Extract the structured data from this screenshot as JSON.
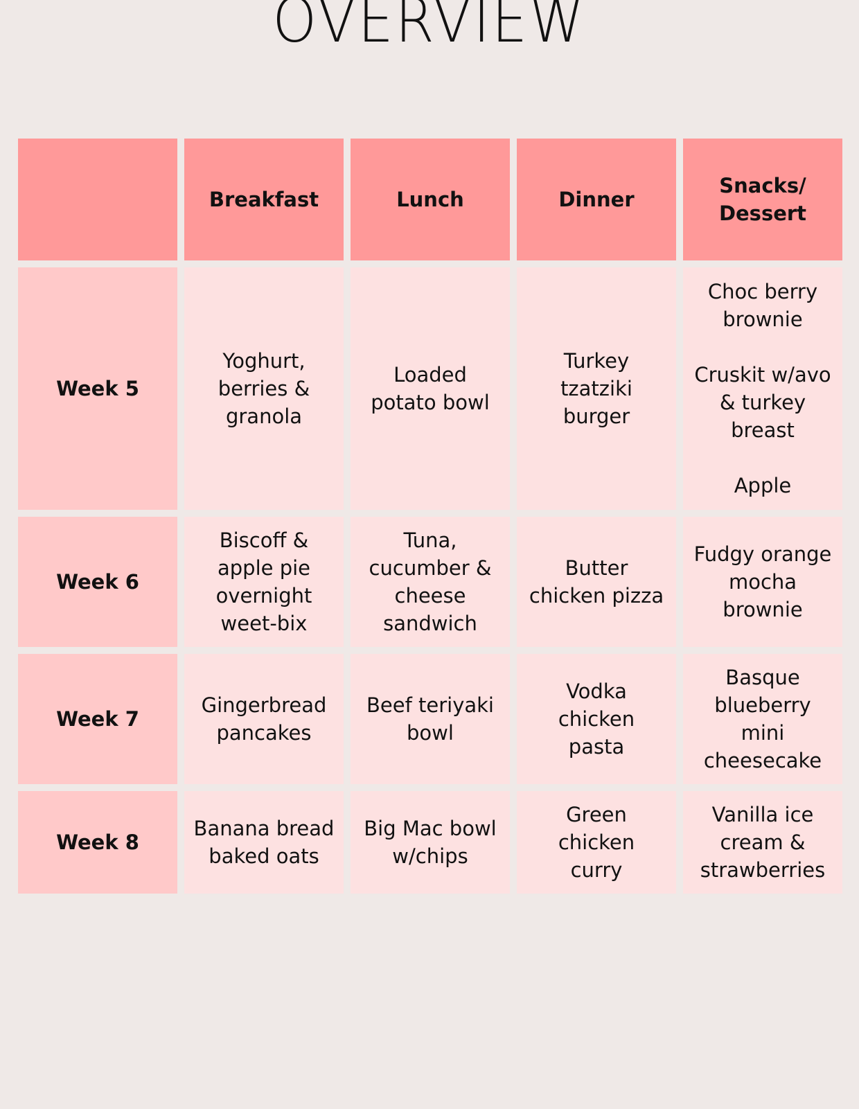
{
  "title": "OVERVIEW",
  "columns": [
    "",
    "Breakfast",
    "Lunch",
    "Dinner",
    "Snacks/\nDessert"
  ],
  "rows": [
    {
      "week": "Week 5",
      "breakfast": "Yoghurt,\nberries &\ngranola",
      "lunch": "Loaded\npotato bowl",
      "dinner": "Turkey tzatziki\nburger",
      "snacks": "Choc berry\nbrownie\n\nCruskit w/avo\n& turkey\nbreast\n\nApple"
    },
    {
      "week": "Week 6",
      "breakfast": "Biscoff &\napple pie\novernight\nweet-bix",
      "lunch": "Tuna,\ncucumber &\ncheese\nsandwich",
      "dinner": "Butter\nchicken pizza",
      "snacks": "Fudgy orange\nmocha\nbrownie"
    },
    {
      "week": "Week 7",
      "breakfast": "Gingerbread\npancakes",
      "lunch": "Beef teriyaki\nbowl",
      "dinner": "Vodka chicken\npasta",
      "snacks": "Basque\nblueberry\nmini\ncheesecake"
    },
    {
      "week": "Week 8",
      "breakfast": "Banana bread\nbaked oats",
      "lunch": "Big Mac bowl\nw/chips",
      "dinner": "Green chicken\ncurry",
      "snacks": "Vanilla ice\ncream &\nstrawberries"
    }
  ]
}
